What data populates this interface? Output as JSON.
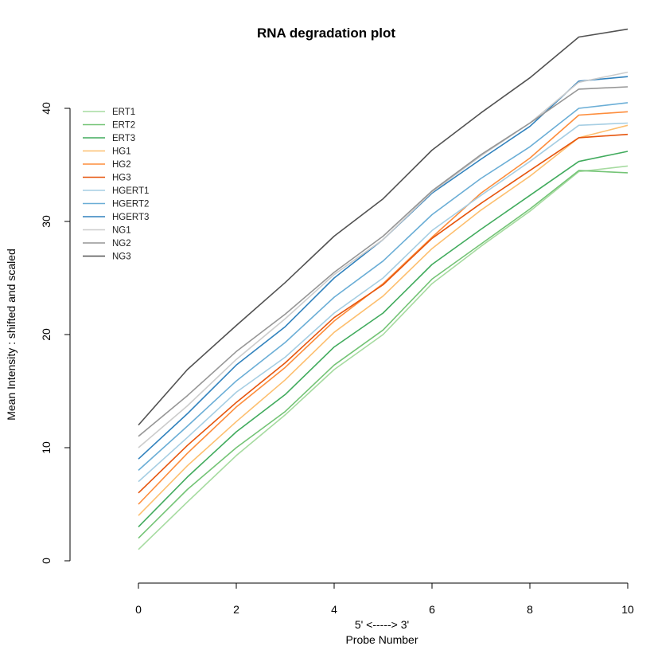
{
  "chart_data": {
    "type": "line",
    "title": "RNA degradation plot",
    "xlabel_line1": "5' <-----> 3'",
    "xlabel_line2": "Probe Number",
    "ylabel": "Mean Intensity : shifted and scaled",
    "xlim": [
      0,
      10
    ],
    "ylim": [
      0,
      48
    ],
    "x_ticks": [
      0,
      2,
      4,
      6,
      8,
      10
    ],
    "y_ticks": [
      0,
      10,
      20,
      30,
      40
    ],
    "grid": false,
    "legend_position": "top-left",
    "x": [
      0,
      1,
      2,
      3,
      4,
      5,
      6,
      7,
      8,
      9,
      10
    ],
    "series": [
      {
        "name": "ERT1",
        "color": "#a6dba0",
        "values": [
          1.0,
          5.2,
          9.3,
          12.9,
          16.9,
          20.0,
          24.5,
          27.8,
          30.9,
          34.4,
          34.9
        ]
      },
      {
        "name": "ERT2",
        "color": "#74c476",
        "values": [
          2.0,
          6.3,
          10.0,
          13.2,
          17.3,
          20.4,
          24.9,
          28.0,
          31.1,
          34.5,
          34.3
        ]
      },
      {
        "name": "ERT3",
        "color": "#41ab5d",
        "values": [
          3.0,
          7.4,
          11.4,
          14.7,
          18.9,
          21.9,
          26.2,
          29.3,
          32.3,
          35.3,
          36.2
        ]
      },
      {
        "name": "HG1",
        "color": "#fdbf6f",
        "values": [
          4.0,
          8.4,
          12.3,
          16.0,
          20.2,
          23.4,
          27.6,
          31.0,
          34.0,
          37.4,
          38.5
        ]
      },
      {
        "name": "HG2",
        "color": "#fd8d3c",
        "values": [
          5.0,
          9.5,
          13.6,
          17.1,
          21.2,
          24.5,
          28.6,
          32.5,
          35.6,
          39.4,
          39.7
        ]
      },
      {
        "name": "HG3",
        "color": "#e6550d",
        "values": [
          6.0,
          10.2,
          14.0,
          17.5,
          21.5,
          24.4,
          28.5,
          31.6,
          34.5,
          37.4,
          37.7
        ]
      },
      {
        "name": "HGERT1",
        "color": "#a6cee3",
        "values": [
          7.0,
          10.9,
          14.9,
          18.0,
          21.9,
          25.0,
          29.2,
          32.3,
          35.3,
          38.5,
          38.7
        ]
      },
      {
        "name": "HGERT2",
        "color": "#6baed6",
        "values": [
          8.0,
          11.9,
          15.9,
          19.3,
          23.3,
          26.5,
          30.6,
          33.8,
          36.6,
          40.0,
          40.5
        ]
      },
      {
        "name": "HGERT3",
        "color": "#3182bd",
        "values": [
          9.0,
          13.0,
          17.3,
          20.7,
          25.0,
          28.4,
          32.5,
          35.5,
          38.4,
          42.4,
          42.8
        ]
      },
      {
        "name": "NG1",
        "color": "#cccccc",
        "values": [
          10.0,
          13.7,
          17.8,
          21.4,
          25.3,
          28.4,
          32.6,
          35.8,
          38.7,
          42.3,
          43.2
        ]
      },
      {
        "name": "NG2",
        "color": "#969696",
        "values": [
          11.0,
          14.6,
          18.5,
          21.8,
          25.5,
          28.7,
          32.7,
          35.9,
          38.7,
          41.7,
          41.9
        ]
      },
      {
        "name": "NG3",
        "color": "#525252",
        "values": [
          12.0,
          16.9,
          20.8,
          24.6,
          28.7,
          32.0,
          36.3,
          39.6,
          42.7,
          46.3,
          47.0
        ]
      }
    ]
  }
}
